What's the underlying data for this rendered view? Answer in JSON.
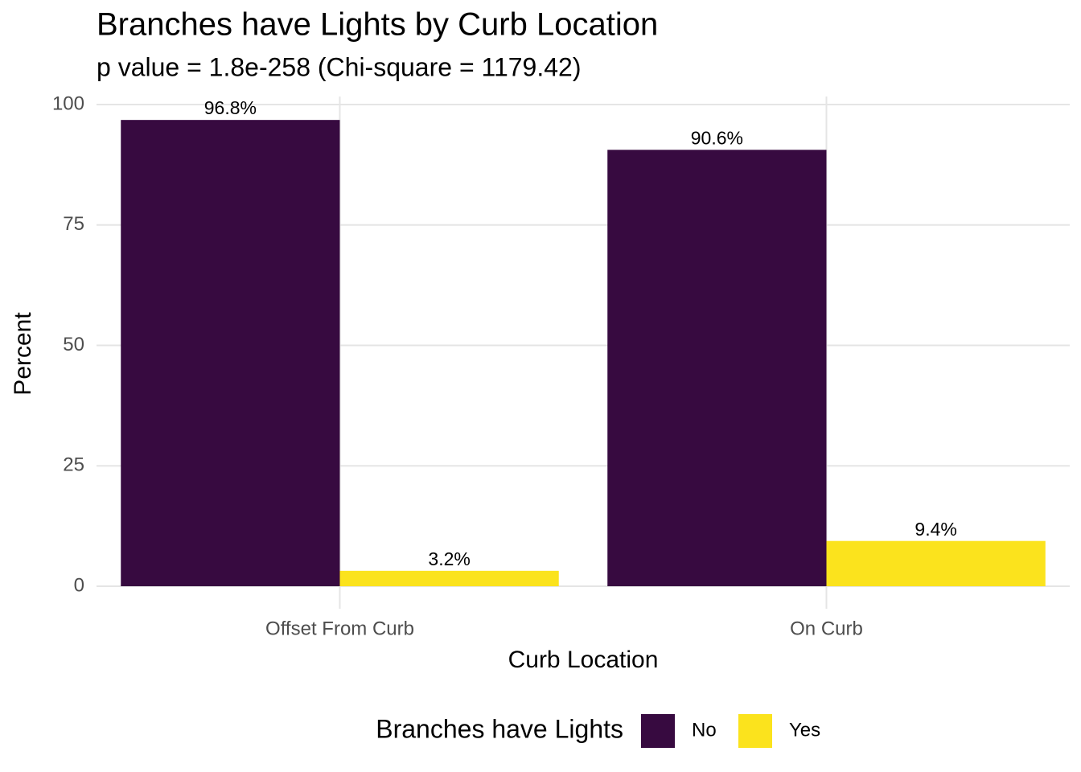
{
  "chart_data": {
    "type": "bar",
    "title": "Branches have Lights by Curb Location",
    "subtitle": "p value = 1.8e-258 (Chi-square = 1179.42)",
    "x_label": "Curb Location",
    "y_label": "Percent",
    "categories": [
      "Offset From Curb",
      "On Curb"
    ],
    "series": [
      {
        "name": "No",
        "color": "#370a40",
        "values": [
          96.8,
          90.6
        ],
        "value_labels": [
          "96.8%",
          "90.6%"
        ]
      },
      {
        "name": "Yes",
        "color": "#fbe31d",
        "values": [
          3.2,
          9.4
        ],
        "value_labels": [
          "3.2%",
          "9.4%"
        ]
      }
    ],
    "legend_title": "Branches have Lights",
    "legend_position": "bottom",
    "ylim": [
      0,
      100
    ],
    "yticks": [
      0,
      25,
      50,
      75,
      100
    ],
    "grid": true
  }
}
